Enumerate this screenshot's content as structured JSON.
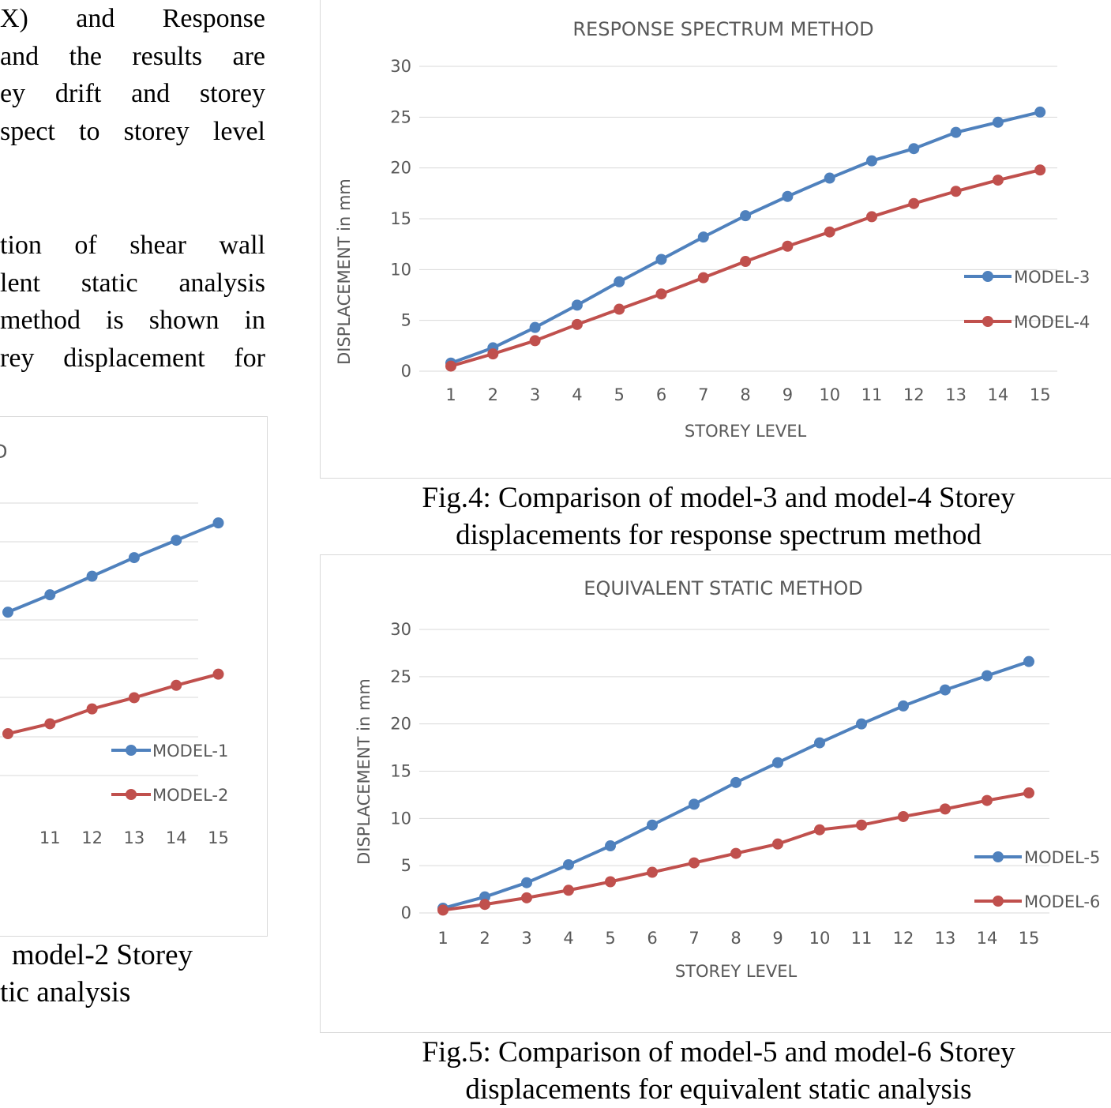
{
  "paragraph1": {
    "lines": [
      "X) and Response",
      "and the results are",
      "ey drift and storey",
      "spect to storey level"
    ]
  },
  "paragraph2": {
    "lines": [
      "tion of shear wall",
      "lent static analysis",
      "method is shown in",
      "rey displacement for"
    ]
  },
  "fig3_caption": {
    "line1": "model-2 Storey",
    "line2": "tic analysis"
  },
  "fig4_caption": {
    "line1": "Fig.4: Comparison of model-3 and model-4 Storey",
    "line2": "displacements for response spectrum method"
  },
  "fig5_caption": {
    "line1": "Fig.5: Comparison of model-5 and model-6 Storey",
    "line2": "displacements for equivalent static analysis"
  },
  "chart_data": [
    {
      "type": "line",
      "title": "",
      "title_fragment": "D",
      "xlabel": "",
      "ylabel": "",
      "visible_x_ticks": [
        11,
        12,
        13,
        14,
        15
      ],
      "x": [
        10,
        11,
        12,
        13,
        14,
        15
      ],
      "series": [
        {
          "name": "MODEL-1",
          "color": "#4f81bd",
          "values": [
            21.2,
            22.6,
            24.1,
            25.6,
            27.0,
            28.4
          ]
        },
        {
          "name": "MODEL-2",
          "color": "#c0504d",
          "values": [
            11.4,
            12.2,
            13.4,
            14.3,
            15.3,
            16.2
          ]
        }
      ],
      "legend": "right",
      "grid": true
    },
    {
      "type": "line",
      "title": "RESPONSE SPECTRUM METHOD",
      "xlabel": "STOREY LEVEL",
      "ylabel": "DISPLACEMENT in mm",
      "categories": [
        1,
        2,
        3,
        4,
        5,
        6,
        7,
        8,
        9,
        10,
        11,
        12,
        13,
        14,
        15
      ],
      "ylim": [
        0,
        30
      ],
      "yticks": [
        0,
        5,
        10,
        15,
        20,
        25,
        30
      ],
      "series": [
        {
          "name": "MODEL-3",
          "color": "#4f81bd",
          "values": [
            0.8,
            2.3,
            4.3,
            6.5,
            8.8,
            11.0,
            13.2,
            15.3,
            17.2,
            19.0,
            20.7,
            21.9,
            23.5,
            24.5,
            25.5
          ]
        },
        {
          "name": "MODEL-4",
          "color": "#c0504d",
          "values": [
            0.5,
            1.7,
            3.0,
            4.6,
            6.1,
            7.6,
            9.2,
            10.8,
            12.3,
            13.7,
            15.2,
            16.5,
            17.7,
            18.8,
            19.8
          ]
        }
      ],
      "legend": "right",
      "grid": true
    },
    {
      "type": "line",
      "title": "EQUIVALENT STATIC METHOD",
      "xlabel": "STOREY LEVEL",
      "ylabel": "DISPLACEMENT in mm",
      "categories": [
        1,
        2,
        3,
        4,
        5,
        6,
        7,
        8,
        9,
        10,
        11,
        12,
        13,
        14,
        15
      ],
      "ylim": [
        0,
        30
      ],
      "yticks": [
        0,
        5,
        10,
        15,
        20,
        25,
        30
      ],
      "series": [
        {
          "name": "MODEL-5",
          "color": "#4f81bd",
          "values": [
            0.5,
            1.7,
            3.2,
            5.1,
            7.1,
            9.3,
            11.5,
            13.8,
            15.9,
            18.0,
            20.0,
            21.9,
            23.6,
            25.1,
            26.6
          ]
        },
        {
          "name": "MODEL-6",
          "color": "#c0504d",
          "values": [
            0.3,
            0.9,
            1.6,
            2.4,
            3.3,
            4.3,
            5.3,
            6.3,
            7.3,
            8.8,
            9.3,
            10.2,
            11.0,
            11.9,
            12.7
          ]
        }
      ],
      "legend": "right",
      "grid": true
    }
  ]
}
